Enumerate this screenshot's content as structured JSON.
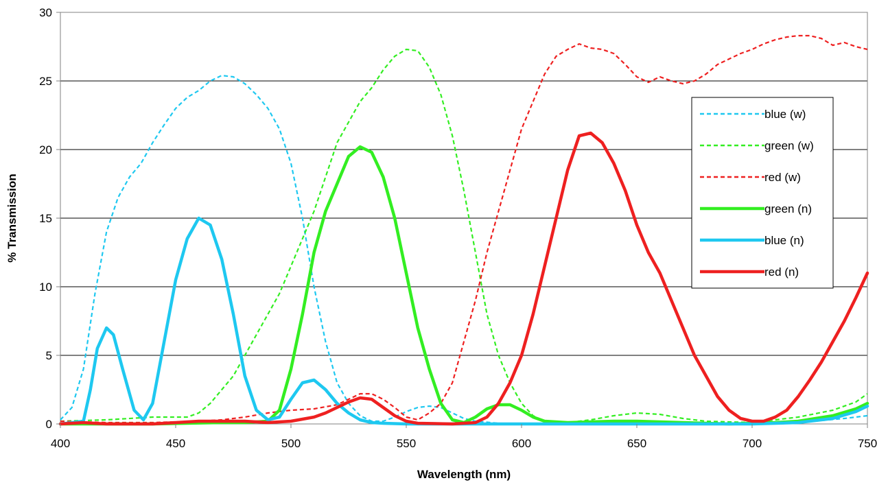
{
  "chart_data": {
    "type": "line",
    "title": "",
    "xlabel": "Wavelength (nm)",
    "ylabel": "% Transmission",
    "xlim": [
      400,
      750
    ],
    "ylim": [
      0,
      30
    ],
    "x_ticks": [
      "400",
      "450",
      "500",
      "550",
      "600",
      "650",
      "700",
      "750"
    ],
    "y_ticks": [
      "0",
      "5",
      "10",
      "15",
      "20",
      "25",
      "30"
    ],
    "grid": "horizontal",
    "legend_position": "right",
    "series": [
      {
        "name": "blue (w)",
        "color": "#1ec8f0",
        "style": "dashed",
        "points": [
          [
            400,
            0.3
          ],
          [
            405,
            1.2
          ],
          [
            410,
            4
          ],
          [
            415,
            9.5
          ],
          [
            420,
            14
          ],
          [
            425,
            16.5
          ],
          [
            430,
            18
          ],
          [
            435,
            19
          ],
          [
            440,
            20.5
          ],
          [
            445,
            21.8
          ],
          [
            450,
            23
          ],
          [
            455,
            23.8
          ],
          [
            460,
            24.3
          ],
          [
            465,
            25
          ],
          [
            470,
            25.4
          ],
          [
            475,
            25.3
          ],
          [
            480,
            24.8
          ],
          [
            485,
            24
          ],
          [
            490,
            23
          ],
          [
            495,
            21.5
          ],
          [
            500,
            19
          ],
          [
            505,
            15
          ],
          [
            510,
            10
          ],
          [
            515,
            6
          ],
          [
            520,
            3
          ],
          [
            525,
            1.5
          ],
          [
            530,
            0.6
          ],
          [
            535,
            0.2
          ],
          [
            540,
            0.2
          ],
          [
            545,
            0.5
          ],
          [
            550,
            0.9
          ],
          [
            555,
            1.2
          ],
          [
            560,
            1.3
          ],
          [
            565,
            1.2
          ],
          [
            570,
            0.8
          ],
          [
            575,
            0.4
          ],
          [
            580,
            0.2
          ],
          [
            590,
            0.05
          ],
          [
            600,
            0
          ],
          [
            650,
            0
          ],
          [
            700,
            0
          ],
          [
            720,
            0.1
          ],
          [
            740,
            0.4
          ],
          [
            750,
            0.6
          ]
        ]
      },
      {
        "name": "green (w)",
        "color": "#33ee22",
        "style": "dashed",
        "points": [
          [
            400,
            0.2
          ],
          [
            420,
            0.3
          ],
          [
            440,
            0.5
          ],
          [
            450,
            0.5
          ],
          [
            455,
            0.5
          ],
          [
            460,
            0.8
          ],
          [
            465,
            1.5
          ],
          [
            470,
            2.5
          ],
          [
            475,
            3.5
          ],
          [
            480,
            5
          ],
          [
            485,
            6.5
          ],
          [
            490,
            8
          ],
          [
            495,
            9.5
          ],
          [
            500,
            11.5
          ],
          [
            505,
            13.5
          ],
          [
            510,
            15.5
          ],
          [
            515,
            18
          ],
          [
            520,
            20.5
          ],
          [
            525,
            22
          ],
          [
            530,
            23.5
          ],
          [
            535,
            24.5
          ],
          [
            540,
            25.8
          ],
          [
            545,
            26.8
          ],
          [
            550,
            27.3
          ],
          [
            555,
            27.2
          ],
          [
            560,
            26
          ],
          [
            565,
            24
          ],
          [
            570,
            21
          ],
          [
            575,
            17
          ],
          [
            580,
            12.5
          ],
          [
            585,
            8
          ],
          [
            590,
            5
          ],
          [
            595,
            3
          ],
          [
            600,
            1.5
          ],
          [
            605,
            0.6
          ],
          [
            610,
            0.2
          ],
          [
            620,
            0.1
          ],
          [
            630,
            0.3
          ],
          [
            640,
            0.6
          ],
          [
            650,
            0.8
          ],
          [
            660,
            0.7
          ],
          [
            670,
            0.4
          ],
          [
            680,
            0.2
          ],
          [
            700,
            0.1
          ],
          [
            720,
            0.5
          ],
          [
            735,
            1
          ],
          [
            745,
            1.6
          ],
          [
            750,
            2.2
          ]
        ]
      },
      {
        "name": "red (w)",
        "color": "#ee2020",
        "style": "dashed",
        "points": [
          [
            400,
            0.2
          ],
          [
            420,
            0.1
          ],
          [
            440,
            0.1
          ],
          [
            460,
            0.2
          ],
          [
            470,
            0.3
          ],
          [
            480,
            0.5
          ],
          [
            490,
            0.8
          ],
          [
            500,
            1
          ],
          [
            510,
            1.1
          ],
          [
            520,
            1.4
          ],
          [
            525,
            1.8
          ],
          [
            530,
            2.2
          ],
          [
            535,
            2.2
          ],
          [
            540,
            1.8
          ],
          [
            545,
            1.2
          ],
          [
            550,
            0.5
          ],
          [
            555,
            0.3
          ],
          [
            560,
            0.8
          ],
          [
            565,
            1.5
          ],
          [
            570,
            3
          ],
          [
            575,
            6
          ],
          [
            580,
            9
          ],
          [
            585,
            12.5
          ],
          [
            590,
            15.5
          ],
          [
            595,
            18.5
          ],
          [
            600,
            21.5
          ],
          [
            605,
            23.5
          ],
          [
            610,
            25.5
          ],
          [
            615,
            26.8
          ],
          [
            620,
            27.3
          ],
          [
            625,
            27.7
          ],
          [
            630,
            27.4
          ],
          [
            635,
            27.3
          ],
          [
            640,
            27
          ],
          [
            645,
            26.2
          ],
          [
            650,
            25.3
          ],
          [
            655,
            24.9
          ],
          [
            660,
            25.3
          ],
          [
            665,
            25
          ],
          [
            670,
            24.8
          ],
          [
            675,
            25
          ],
          [
            680,
            25.5
          ],
          [
            685,
            26.2
          ],
          [
            690,
            26.6
          ],
          [
            695,
            27
          ],
          [
            700,
            27.3
          ],
          [
            705,
            27.7
          ],
          [
            710,
            28
          ],
          [
            715,
            28.2
          ],
          [
            720,
            28.3
          ],
          [
            725,
            28.3
          ],
          [
            730,
            28.1
          ],
          [
            735,
            27.6
          ],
          [
            740,
            27.8
          ],
          [
            745,
            27.5
          ],
          [
            750,
            27.3
          ]
        ]
      },
      {
        "name": "green (n)",
        "color": "#33ee22",
        "style": "solid",
        "points": [
          [
            400,
            0
          ],
          [
            440,
            0
          ],
          [
            470,
            0.1
          ],
          [
            480,
            0.1
          ],
          [
            490,
            0.2
          ],
          [
            495,
            1
          ],
          [
            500,
            4
          ],
          [
            505,
            8
          ],
          [
            510,
            12.5
          ],
          [
            515,
            15.5
          ],
          [
            520,
            17.5
          ],
          [
            525,
            19.5
          ],
          [
            530,
            20.2
          ],
          [
            535,
            19.8
          ],
          [
            540,
            18
          ],
          [
            545,
            15
          ],
          [
            550,
            11
          ],
          [
            555,
            7
          ],
          [
            560,
            4
          ],
          [
            565,
            1.5
          ],
          [
            570,
            0.3
          ],
          [
            575,
            0.1
          ],
          [
            580,
            0.5
          ],
          [
            585,
            1.1
          ],
          [
            590,
            1.4
          ],
          [
            595,
            1.4
          ],
          [
            600,
            1
          ],
          [
            605,
            0.5
          ],
          [
            610,
            0.2
          ],
          [
            620,
            0.1
          ],
          [
            640,
            0.2
          ],
          [
            650,
            0.2
          ],
          [
            670,
            0.1
          ],
          [
            690,
            0
          ],
          [
            710,
            0.1
          ],
          [
            720,
            0.2
          ],
          [
            735,
            0.6
          ],
          [
            745,
            1.1
          ],
          [
            750,
            1.5
          ]
        ]
      },
      {
        "name": "blue (n)",
        "color": "#1ec8f0",
        "style": "solid",
        "points": [
          [
            400,
            0
          ],
          [
            410,
            0.2
          ],
          [
            413,
            2.5
          ],
          [
            416,
            5.5
          ],
          [
            420,
            7
          ],
          [
            423,
            6.5
          ],
          [
            427,
            4
          ],
          [
            432,
            1
          ],
          [
            436,
            0.3
          ],
          [
            440,
            1.5
          ],
          [
            445,
            6
          ],
          [
            450,
            10.5
          ],
          [
            455,
            13.5
          ],
          [
            460,
            15
          ],
          [
            465,
            14.5
          ],
          [
            470,
            12
          ],
          [
            475,
            8
          ],
          [
            480,
            3.5
          ],
          [
            485,
            1
          ],
          [
            490,
            0.3
          ],
          [
            495,
            0.5
          ],
          [
            500,
            1.8
          ],
          [
            505,
            3
          ],
          [
            510,
            3.2
          ],
          [
            515,
            2.5
          ],
          [
            520,
            1.5
          ],
          [
            525,
            0.8
          ],
          [
            530,
            0.3
          ],
          [
            535,
            0.1
          ],
          [
            540,
            0.05
          ],
          [
            550,
            0
          ],
          [
            600,
            0
          ],
          [
            650,
            0
          ],
          [
            700,
            0
          ],
          [
            720,
            0.1
          ],
          [
            735,
            0.4
          ],
          [
            745,
            0.9
          ],
          [
            750,
            1.3
          ]
        ]
      },
      {
        "name": "red (n)",
        "color": "#ee2020",
        "style": "solid",
        "points": [
          [
            400,
            0
          ],
          [
            410,
            0.1
          ],
          [
            420,
            0
          ],
          [
            440,
            0
          ],
          [
            460,
            0.2
          ],
          [
            480,
            0.2
          ],
          [
            490,
            0.1
          ],
          [
            500,
            0.2
          ],
          [
            510,
            0.5
          ],
          [
            515,
            0.8
          ],
          [
            520,
            1.2
          ],
          [
            525,
            1.6
          ],
          [
            530,
            1.9
          ],
          [
            535,
            1.8
          ],
          [
            540,
            1.2
          ],
          [
            545,
            0.6
          ],
          [
            550,
            0.2
          ],
          [
            555,
            0.05
          ],
          [
            570,
            0
          ],
          [
            580,
            0.1
          ],
          [
            585,
            0.5
          ],
          [
            590,
            1.5
          ],
          [
            595,
            3
          ],
          [
            600,
            5
          ],
          [
            605,
            8
          ],
          [
            610,
            11.5
          ],
          [
            615,
            15
          ],
          [
            620,
            18.5
          ],
          [
            625,
            21
          ],
          [
            630,
            21.2
          ],
          [
            635,
            20.5
          ],
          [
            640,
            19
          ],
          [
            645,
            17
          ],
          [
            650,
            14.5
          ],
          [
            655,
            12.5
          ],
          [
            660,
            11
          ],
          [
            665,
            9
          ],
          [
            670,
            7
          ],
          [
            675,
            5
          ],
          [
            680,
            3.5
          ],
          [
            685,
            2
          ],
          [
            690,
            1
          ],
          [
            695,
            0.4
          ],
          [
            700,
            0.2
          ],
          [
            705,
            0.2
          ],
          [
            710,
            0.5
          ],
          [
            715,
            1
          ],
          [
            720,
            2
          ],
          [
            725,
            3.2
          ],
          [
            730,
            4.5
          ],
          [
            735,
            6
          ],
          [
            740,
            7.5
          ],
          [
            745,
            9.2
          ],
          [
            750,
            11
          ]
        ]
      }
    ]
  }
}
